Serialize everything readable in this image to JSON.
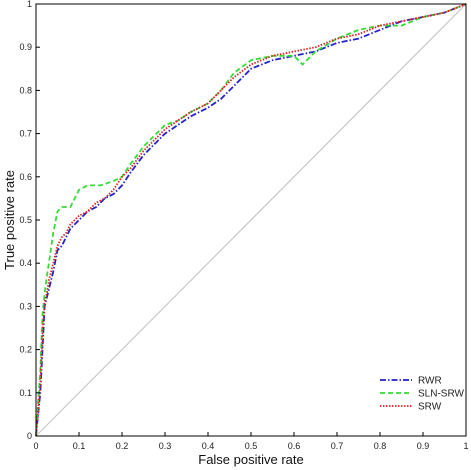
{
  "chart_data": {
    "type": "line",
    "title": "",
    "xlabel": "False positive rate",
    "ylabel": "True positive rate",
    "xlim": [
      0,
      1
    ],
    "ylim": [
      0,
      1
    ],
    "x_ticks": [
      "0",
      "0.1",
      "0.2",
      "0.3",
      "0.4",
      "0.5",
      "0.6",
      "0.7",
      "0.8",
      "0.9",
      "1"
    ],
    "y_ticks": [
      "0",
      "0.1",
      "0.2",
      "0.3",
      "0.4",
      "0.5",
      "0.6",
      "0.7",
      "0.8",
      "0.9",
      "1"
    ],
    "grid": false,
    "legend_position": "bottom-right",
    "reference_line": {
      "x": [
        0,
        1
      ],
      "y": [
        0,
        1
      ],
      "color": "#c8c8c8"
    },
    "series": [
      {
        "name": "RWR",
        "color": "#2222cc",
        "dash": "dashdot",
        "x": [
          0,
          0.005,
          0.01,
          0.015,
          0.02,
          0.025,
          0.03,
          0.04,
          0.05,
          0.06,
          0.07,
          0.08,
          0.1,
          0.12,
          0.14,
          0.16,
          0.18,
          0.2,
          0.22,
          0.25,
          0.28,
          0.3,
          0.33,
          0.36,
          0.4,
          0.43,
          0.46,
          0.5,
          0.55,
          0.6,
          0.65,
          0.7,
          0.75,
          0.8,
          0.85,
          0.9,
          0.95,
          1
        ],
        "y": [
          0,
          0.05,
          0.1,
          0.2,
          0.3,
          0.32,
          0.34,
          0.38,
          0.43,
          0.44,
          0.46,
          0.48,
          0.5,
          0.52,
          0.53,
          0.55,
          0.56,
          0.58,
          0.61,
          0.65,
          0.68,
          0.7,
          0.72,
          0.74,
          0.76,
          0.78,
          0.81,
          0.85,
          0.87,
          0.88,
          0.89,
          0.91,
          0.92,
          0.94,
          0.96,
          0.97,
          0.98,
          1
        ]
      },
      {
        "name": "SLN-SRW",
        "color": "#33dd33",
        "dash": "dashed",
        "x": [
          0,
          0.005,
          0.01,
          0.015,
          0.02,
          0.025,
          0.03,
          0.04,
          0.05,
          0.06,
          0.08,
          0.1,
          0.12,
          0.15,
          0.18,
          0.2,
          0.22,
          0.25,
          0.28,
          0.3,
          0.33,
          0.36,
          0.4,
          0.43,
          0.46,
          0.5,
          0.55,
          0.6,
          0.62,
          0.65,
          0.7,
          0.75,
          0.8,
          0.85,
          0.9,
          0.95,
          1
        ],
        "y": [
          0,
          0.08,
          0.15,
          0.28,
          0.33,
          0.37,
          0.4,
          0.47,
          0.52,
          0.53,
          0.53,
          0.57,
          0.58,
          0.58,
          0.59,
          0.6,
          0.63,
          0.67,
          0.7,
          0.72,
          0.73,
          0.75,
          0.77,
          0.8,
          0.84,
          0.87,
          0.88,
          0.88,
          0.86,
          0.89,
          0.92,
          0.94,
          0.95,
          0.95,
          0.97,
          0.98,
          1
        ]
      },
      {
        "name": "SRW",
        "color": "#dd2222",
        "dash": "dotted",
        "x": [
          0,
          0.005,
          0.01,
          0.015,
          0.02,
          0.025,
          0.03,
          0.04,
          0.05,
          0.06,
          0.07,
          0.08,
          0.1,
          0.12,
          0.14,
          0.16,
          0.18,
          0.2,
          0.22,
          0.25,
          0.28,
          0.3,
          0.33,
          0.36,
          0.4,
          0.43,
          0.46,
          0.5,
          0.55,
          0.6,
          0.65,
          0.7,
          0.75,
          0.8,
          0.85,
          0.9,
          0.95,
          1
        ],
        "y": [
          0,
          0.06,
          0.12,
          0.24,
          0.31,
          0.33,
          0.36,
          0.4,
          0.44,
          0.46,
          0.47,
          0.49,
          0.51,
          0.52,
          0.54,
          0.55,
          0.57,
          0.6,
          0.62,
          0.66,
          0.69,
          0.71,
          0.73,
          0.75,
          0.77,
          0.8,
          0.83,
          0.86,
          0.88,
          0.89,
          0.9,
          0.92,
          0.93,
          0.95,
          0.96,
          0.97,
          0.98,
          1
        ]
      }
    ]
  }
}
